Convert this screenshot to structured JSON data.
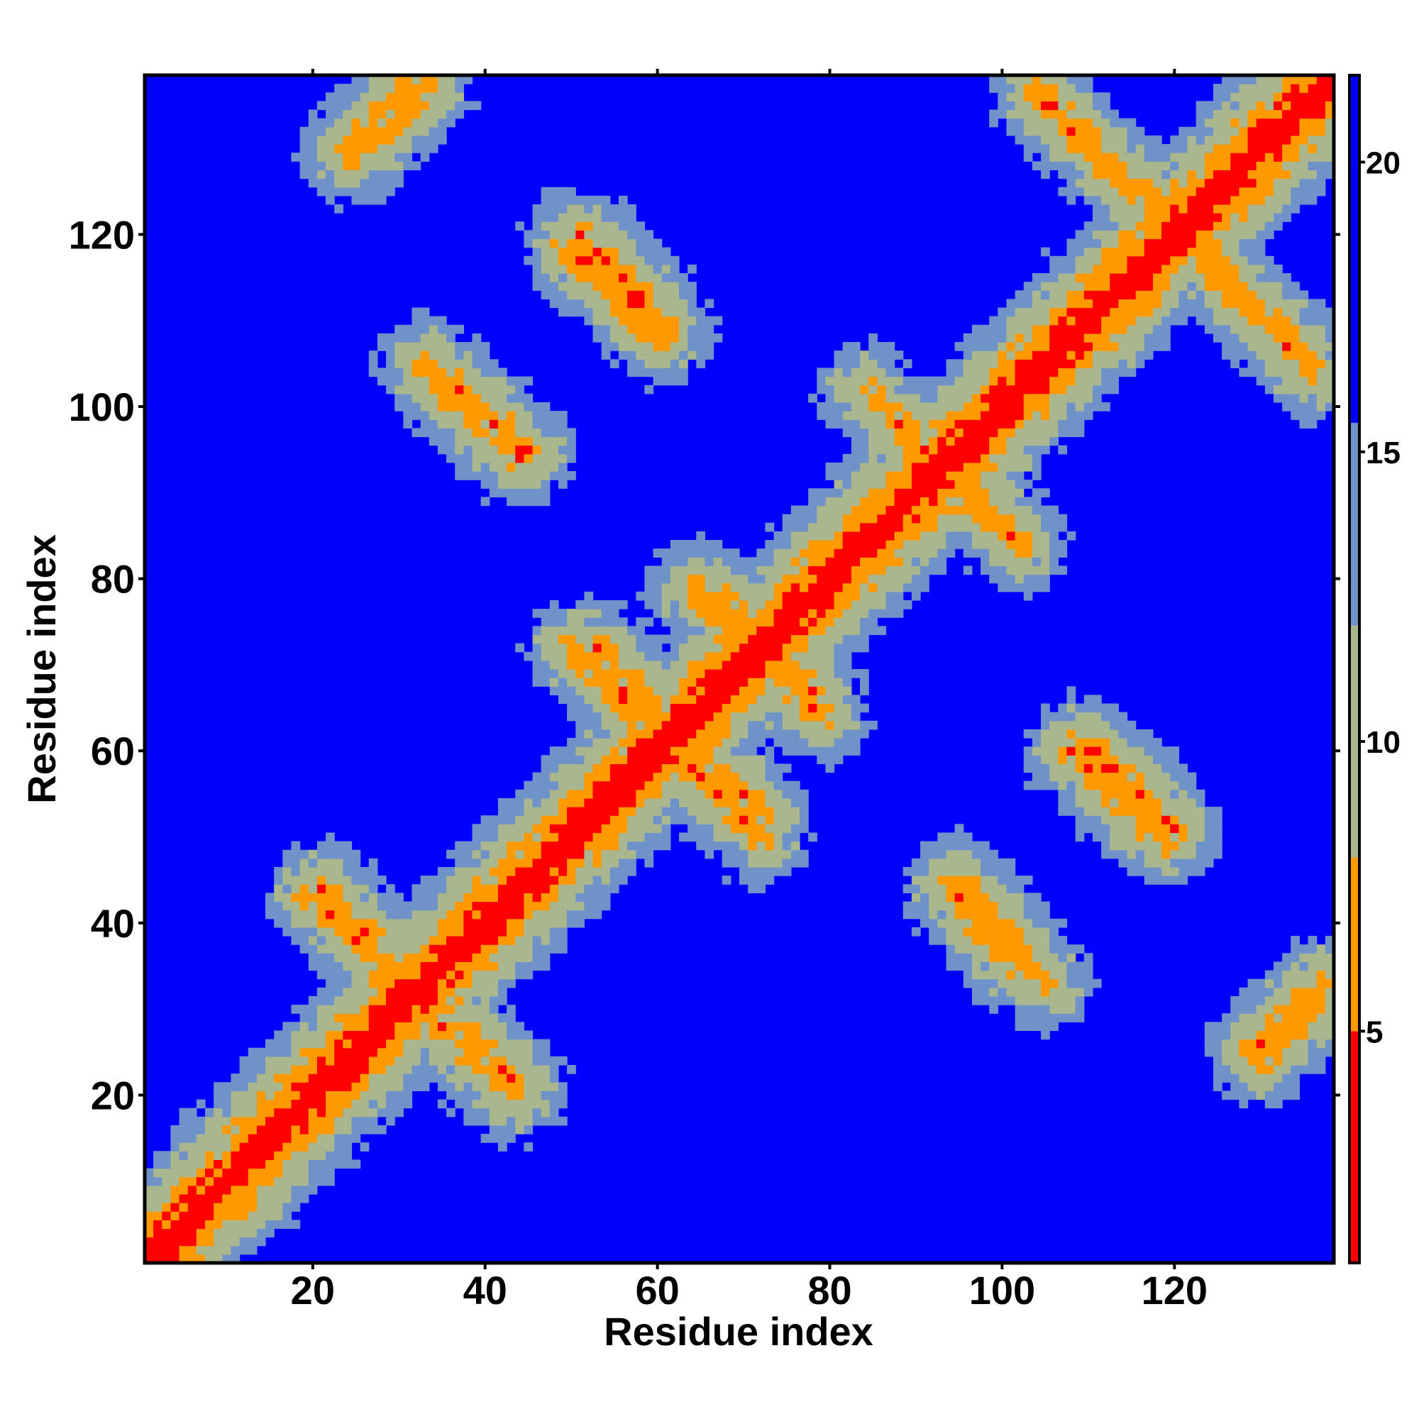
{
  "chart_data": {
    "type": "heatmap",
    "title": "",
    "xlabel": "Residue index",
    "ylabel": "Residue index",
    "xlim": [
      1,
      138
    ],
    "ylim": [
      1,
      138
    ],
    "n_residues": 138,
    "x_ticks": [
      20,
      40,
      60,
      80,
      100,
      120
    ],
    "y_ticks": [
      20,
      40,
      60,
      80,
      100,
      120
    ],
    "x_tick_labels": [
      "20",
      "40",
      "60",
      "80",
      "100",
      "120"
    ],
    "y_tick_labels": [
      "20",
      "40",
      "60",
      "80",
      "100",
      "120"
    ],
    "colorbar": {
      "ticks": [
        5,
        10,
        15,
        20
      ],
      "tick_labels": [
        "5",
        "10",
        "15",
        "20"
      ],
      "range": [
        1,
        21.5
      ],
      "placement": "right"
    },
    "background_color": "#0000ff",
    "colors": {
      "close": "#ff0000",
      "near": "#ff9900",
      "medium": "#a9b68e",
      "far": "#6f93c8",
      "cutoff": "#0000ff"
    },
    "structure": {
      "diagonal": {
        "value": 1.5
      },
      "symmetric_contact_bands": [
        {
          "i_from": 20,
          "j_from": 43,
          "i_to": 26,
          "j_to": 37,
          "min": 6
        },
        {
          "i_from": 21,
          "j_from": 44,
          "i_to": 27,
          "j_to": 38,
          "min": 6
        },
        {
          "i_from": 26,
          "j_from": 37,
          "i_to": 34,
          "j_to": 28,
          "min": 6
        },
        {
          "i_from": 31,
          "j_from": 137,
          "i_to": 24,
          "j_to": 130,
          "min": 6
        },
        {
          "i_from": 35,
          "j_from": 102,
          "i_to": 44,
          "j_to": 94,
          "min": 6
        },
        {
          "i_from": 36,
          "j_from": 103,
          "i_to": 45,
          "j_to": 95,
          "min": 6
        },
        {
          "i_from": 50,
          "j_from": 119,
          "i_to": 59,
          "j_to": 110,
          "min": 6
        },
        {
          "i_from": 51,
          "j_from": 120,
          "i_to": 60,
          "j_to": 111,
          "min": 6
        },
        {
          "i_from": 52,
          "j_from": 71,
          "i_to": 60,
          "j_to": 63,
          "min": 6
        },
        {
          "i_from": 53,
          "j_from": 72,
          "i_to": 61,
          "j_to": 64,
          "min": 6
        },
        {
          "i_from": 62,
          "j_from": 60,
          "i_to": 72,
          "j_to": 50,
          "min": 6
        },
        {
          "i_from": 67,
          "j_from": 78,
          "i_to": 74,
          "j_to": 71,
          "min": 6
        },
        {
          "i_from": 72,
          "j_from": 71,
          "i_to": 79,
          "j_to": 64,
          "min": 6
        },
        {
          "i_from": 84,
          "j_from": 102,
          "i_to": 90,
          "j_to": 95,
          "min": 6
        },
        {
          "i_from": 95,
          "j_from": 91,
          "i_to": 102,
          "j_to": 84,
          "min": 6
        },
        {
          "i_from": 95,
          "j_from": 44,
          "i_to": 104,
          "j_to": 34,
          "min": 6
        },
        {
          "i_from": 96,
          "j_from": 43,
          "i_to": 105,
          "j_to": 33,
          "min": 6
        },
        {
          "i_from": 104,
          "j_from": 136,
          "i_to": 120,
          "j_to": 121,
          "min": 6
        },
        {
          "i_from": 105,
          "j_from": 135,
          "i_to": 121,
          "j_to": 120,
          "min": 6
        },
        {
          "i_from": 108,
          "j_from": 60,
          "i_to": 118,
          "j_to": 50,
          "min": 6
        },
        {
          "i_from": 109,
          "j_from": 61,
          "i_to": 119,
          "j_to": 51,
          "min": 6
        },
        {
          "i_from": 121,
          "j_from": 120,
          "i_to": 135,
          "j_to": 106,
          "min": 6
        },
        {
          "i_from": 129,
          "j_from": 25,
          "i_to": 137,
          "j_to": 33,
          "min": 6
        }
      ]
    }
  }
}
